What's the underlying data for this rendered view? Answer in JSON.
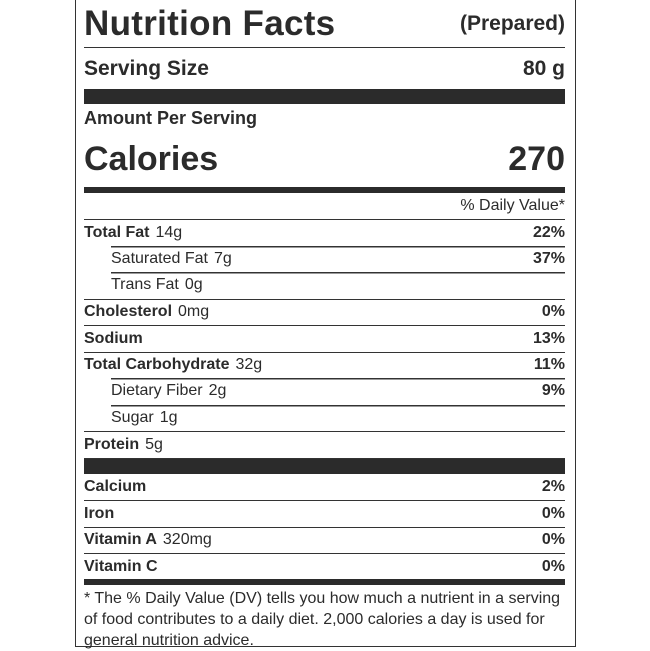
{
  "header": {
    "title": "Nutrition Facts",
    "qualifier": "(Prepared)"
  },
  "serving": {
    "label": "Serving Size",
    "value": "80 g"
  },
  "amount_per_serving": "Amount Per Serving",
  "calories": {
    "label": "Calories",
    "value": "270"
  },
  "daily_value_header": "% Daily Value*",
  "nutrients": [
    {
      "name": "Total Fat",
      "amount": "14g",
      "dv": "22%",
      "indent": false
    },
    {
      "name": "Saturated Fat",
      "amount": "7g",
      "dv": "37%",
      "indent": true
    },
    {
      "name": "Trans Fat",
      "amount": "0g",
      "dv": "",
      "indent": true
    },
    {
      "name": "Cholesterol",
      "amount": "0mg",
      "dv": "0%",
      "indent": false
    },
    {
      "name": "Sodium",
      "amount": "",
      "dv": "13%",
      "indent": false
    },
    {
      "name": "Total Carbohydrate",
      "amount": "32g",
      "dv": "11%",
      "indent": false
    },
    {
      "name": "Dietary Fiber",
      "amount": "2g",
      "dv": "9%",
      "indent": true
    },
    {
      "name": "Sugar",
      "amount": "1g",
      "dv": "",
      "indent": true
    },
    {
      "name": "Protein",
      "amount": "5g",
      "dv": "",
      "indent": false
    }
  ],
  "vitamins": [
    {
      "name": "Calcium",
      "amount": "",
      "dv": "2%"
    },
    {
      "name": "Iron",
      "amount": "",
      "dv": "0%"
    },
    {
      "name": "Vitamin A",
      "amount": "320mg",
      "dv": "0%"
    },
    {
      "name": "Vitamin C",
      "amount": "",
      "dv": "0%"
    }
  ],
  "footnote": "* The % Daily Value (DV) tells you how much a nutrient in a serving of food contributes to a daily diet. 2,000 calories a day is used for general nutrition advice."
}
